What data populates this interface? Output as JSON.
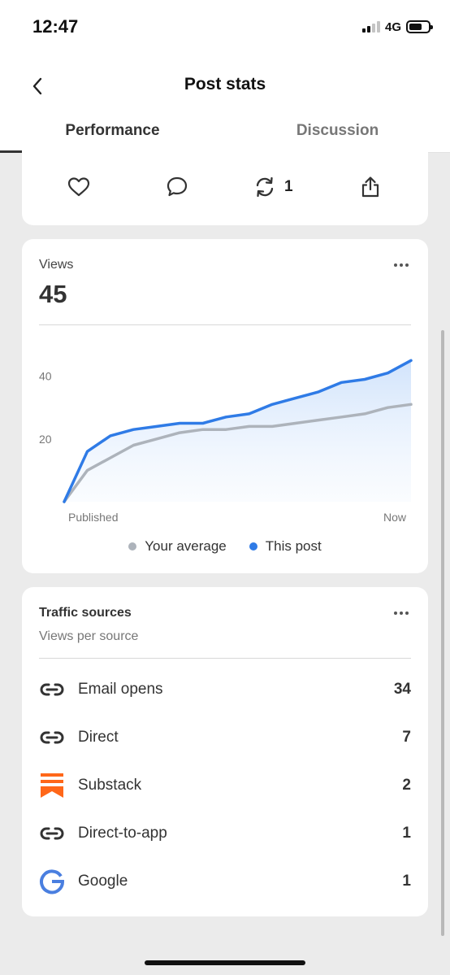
{
  "status_bar": {
    "time": "12:47",
    "network": "4G"
  },
  "header": {
    "title": "Post stats"
  },
  "tabs": [
    {
      "label": "Performance",
      "active": true
    },
    {
      "label": "Discussion",
      "active": false
    }
  ],
  "actions": {
    "restack_count": "1"
  },
  "views": {
    "label": "Views",
    "total": "45",
    "legend": {
      "average": "Your average",
      "post": "This post"
    },
    "colors": {
      "average": "#adb3bb",
      "post": "#2f7be6"
    }
  },
  "chart_data": {
    "type": "line",
    "xlabel": "",
    "ylabel": "",
    "x_tick_labels": [
      "Published",
      "Now"
    ],
    "y_ticks": [
      20,
      40
    ],
    "ylim": [
      0,
      50
    ],
    "grid": false,
    "series": [
      {
        "name": "Your average",
        "values": [
          0,
          10,
          14,
          18,
          20,
          22,
          23,
          23,
          24,
          24,
          25,
          26,
          27,
          28,
          30,
          31
        ]
      },
      {
        "name": "This post",
        "values": [
          0,
          16,
          21,
          23,
          24,
          25,
          25,
          27,
          28,
          31,
          33,
          35,
          38,
          39,
          41,
          45
        ]
      }
    ]
  },
  "traffic": {
    "title": "Traffic sources",
    "subtitle": "Views per source",
    "sources": [
      {
        "name": "Email opens",
        "count": "34",
        "icon": "link-icon"
      },
      {
        "name": "Direct",
        "count": "7",
        "icon": "link-icon"
      },
      {
        "name": "Substack",
        "count": "2",
        "icon": "substack-icon"
      },
      {
        "name": "Direct-to-app",
        "count": "1",
        "icon": "link-icon"
      },
      {
        "name": "Google",
        "count": "1",
        "icon": "google-icon"
      }
    ]
  }
}
